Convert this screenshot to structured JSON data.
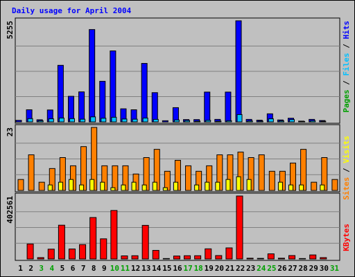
{
  "chart_data": {
    "type": "bar",
    "title": "Daily usage for April 2004",
    "categories": [
      "1",
      "2",
      "3",
      "4",
      "5",
      "6",
      "7",
      "8",
      "9",
      "10",
      "11",
      "12",
      "13",
      "14",
      "15",
      "16",
      "17",
      "18",
      "19",
      "20",
      "21",
      "22",
      "23",
      "24",
      "25",
      "26",
      "27",
      "28",
      "29",
      "30",
      "31"
    ],
    "weekend_days": [
      "3",
      "4",
      "10",
      "11",
      "17",
      "18",
      "24",
      "25",
      "31"
    ],
    "panels": [
      {
        "id": "top",
        "max_label": "5255",
        "ylim": [
          0,
          5255
        ],
        "legend": [
          "Pages",
          "Files",
          "Hits"
        ],
        "series": [
          {
            "name": "Hits",
            "color": "#0000ff",
            "values": [
              80,
              630,
              110,
              620,
              2940,
              1330,
              1560,
              4800,
              2110,
              3690,
              680,
              630,
              3040,
              1520,
              60,
              740,
              120,
              120,
              1550,
              130,
              1550,
              5255,
              130,
              90,
              420,
              100,
              190,
              40,
              130,
              70,
              0
            ]
          },
          {
            "name": "Files",
            "color": "#00c0ff",
            "values": [
              0,
              170,
              60,
              160,
              200,
              170,
              140,
              260,
              190,
              240,
              150,
              140,
              200,
              130,
              0,
              100,
              70,
              40,
              80,
              40,
              60,
              380,
              50,
              40,
              160,
              50,
              120,
              20,
              60,
              30,
              0
            ]
          },
          {
            "name": "Pages",
            "color": "#00a000",
            "values": [
              0,
              0,
              0,
              0,
              0,
              0,
              0,
              0,
              0,
              0,
              0,
              0,
              0,
              0,
              0,
              0,
              0,
              0,
              0,
              0,
              0,
              0,
              0,
              0,
              0,
              0,
              0,
              0,
              0,
              0,
              0
            ]
          }
        ]
      },
      {
        "id": "middle",
        "max_label": "23",
        "ylim": [
          0,
          23
        ],
        "legend": [
          "Sites",
          "Visits"
        ],
        "series": [
          {
            "name": "Sites",
            "color": "#ff8000",
            "values": [
              4,
              13,
              3,
              8,
              12,
              9,
              16,
              23,
              9,
              9,
              9,
              6,
              12,
              15,
              7,
              11,
              9,
              7,
              9,
              13,
              13,
              14,
              12,
              13,
              7,
              7,
              10,
              15,
              3,
              12,
              4
            ]
          },
          {
            "name": "Visits",
            "color": "#ffff00",
            "values": [
              0,
              0,
              0,
              2,
              3,
              4,
              2,
              4,
              3,
              1,
              2,
              3,
              2,
              3,
              1,
              3,
              0,
              2,
              3,
              3,
              4,
              5,
              4,
              0,
              0,
              3,
              2,
              2,
              0,
              2,
              0
            ]
          }
        ]
      },
      {
        "id": "bottom",
        "max_label": "402561",
        "ylim": [
          0,
          402561
        ],
        "legend": [
          "KBytes"
        ],
        "series": [
          {
            "name": "KBytes",
            "color": "#ff0000",
            "values": [
              0,
              96000,
              9000,
              63000,
              216000,
              64000,
              92000,
              265000,
              129000,
              310000,
              20000,
              21000,
              215000,
              55000,
              3000,
              19000,
              21000,
              21000,
              65000,
              22000,
              71000,
              402561,
              5000,
              4000,
              33000,
              5000,
              22000,
              3000,
              26000,
              9000,
              0
            ]
          }
        ]
      }
    ]
  }
}
